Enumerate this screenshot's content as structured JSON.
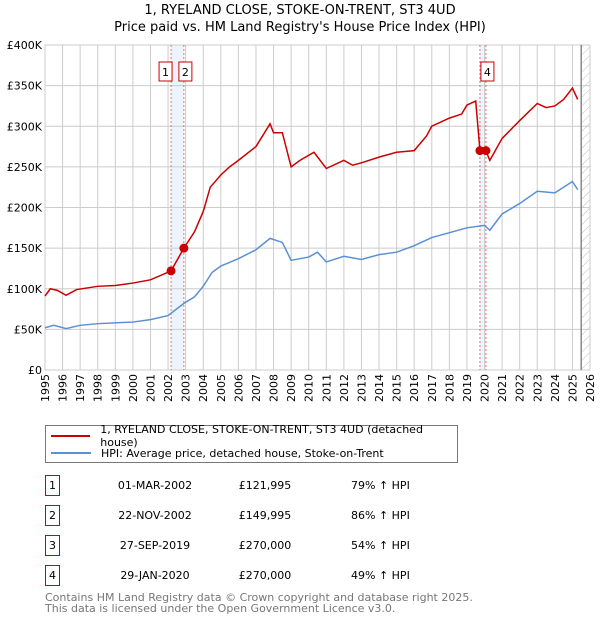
{
  "chart_data": {
    "type": "line",
    "title": "1, RYELAND CLOSE, STOKE-ON-TRENT, ST3 4UD",
    "subtitle": "Price paid vs. HM Land Registry's House Price Index (HPI)",
    "xlim": [
      1995,
      2026
    ],
    "ylim": [
      0,
      400000
    ],
    "yticks": [
      0,
      50000,
      100000,
      150000,
      200000,
      250000,
      300000,
      350000,
      400000
    ],
    "ytick_labels": [
      "£0",
      "£50K",
      "£100K",
      "£150K",
      "£200K",
      "£250K",
      "£300K",
      "£350K",
      "£400K"
    ],
    "xticks": [
      1995,
      1996,
      1997,
      1998,
      1999,
      2000,
      2001,
      2002,
      2003,
      2004,
      2005,
      2006,
      2007,
      2008,
      2009,
      2010,
      2011,
      2012,
      2013,
      2014,
      2015,
      2016,
      2017,
      2018,
      2019,
      2020,
      2021,
      2022,
      2023,
      2024,
      2025,
      2026
    ],
    "grid": true,
    "series": [
      {
        "name": "1, RYELAND CLOSE, STOKE-ON-TRENT, ST3 4UD (detached house)",
        "color": "#cc0000",
        "x": [
          1995,
          1995.3,
          1995.7,
          1996.2,
          1996.8,
          1998,
          1999,
          2000,
          2001,
          2002.17,
          2002.9,
          2003.5,
          2004,
          2004.4,
          2005,
          2005.5,
          2006,
          2007,
          2007.8,
          2008,
          2008.5,
          2009,
          2009.5,
          2010.3,
          2011,
          2012,
          2012.5,
          2013,
          2014,
          2015,
          2016,
          2016.7,
          2017,
          2018,
          2018.7,
          2019,
          2019.5,
          2019.74,
          2020.08,
          2020.3,
          2021,
          2022,
          2023,
          2023.5,
          2024,
          2024.5,
          2025,
          2025.3
        ],
        "y": [
          91000,
          100000,
          98000,
          92000,
          99000,
          103000,
          104000,
          107000,
          111000,
          121995,
          149995,
          170000,
          195000,
          225000,
          240000,
          250000,
          258000,
          275000,
          303000,
          292000,
          292000,
          250000,
          258000,
          268000,
          248000,
          258000,
          252000,
          255000,
          262000,
          268000,
          270000,
          288000,
          300000,
          310000,
          315000,
          326000,
          331000,
          270000,
          270000,
          258000,
          285000,
          307000,
          328000,
          323000,
          325000,
          333000,
          347000,
          333000
        ]
      },
      {
        "name": "HPI: Average price, detached house, Stoke-on-Trent",
        "color": "#5b8fd6",
        "x": [
          1995,
          1995.5,
          1996.2,
          1997,
          1998,
          2000,
          2001,
          2002,
          2002.9,
          2003.5,
          2004,
          2004.5,
          2005,
          2006,
          2007,
          2007.8,
          2008.5,
          2009,
          2010,
          2010.5,
          2011,
          2012,
          2013,
          2014,
          2015,
          2016,
          2017,
          2018,
          2019,
          2020,
          2020.3,
          2021,
          2022,
          2023,
          2024,
          2025,
          2025.3
        ],
        "y": [
          52000,
          55000,
          51000,
          55000,
          57000,
          59000,
          62000,
          67000,
          82000,
          90000,
          103000,
          120000,
          128000,
          137000,
          148000,
          162000,
          157000,
          135000,
          139000,
          145000,
          133000,
          140000,
          136000,
          142000,
          145000,
          153000,
          163000,
          169000,
          175000,
          178000,
          172000,
          192000,
          205000,
          220000,
          218000,
          232000,
          222000
        ]
      }
    ],
    "sales": [
      {
        "n": "1",
        "x": 2002.17,
        "y": 121995
      },
      {
        "n": "2",
        "x": 2002.9,
        "y": 149995
      },
      {
        "n": "3",
        "x": 2019.74,
        "y": 270000
      },
      {
        "n": "4",
        "x": 2020.08,
        "y": 270000
      }
    ],
    "bands": [
      [
        2002.17,
        2002.9
      ],
      [
        2019.74,
        2020.08
      ]
    ],
    "forecast_from": 2025.5
  },
  "legend": {
    "property": "1, RYELAND CLOSE, STOKE-ON-TRENT, ST3 4UD (detached house)",
    "hpi": "HPI: Average price, detached house, Stoke-on-Trent"
  },
  "table": [
    {
      "n": "1",
      "date": "01-MAR-2002",
      "price": "£121,995",
      "hpi": "79% ↑ HPI"
    },
    {
      "n": "2",
      "date": "22-NOV-2002",
      "price": "£149,995",
      "hpi": "86% ↑ HPI"
    },
    {
      "n": "3",
      "date": "27-SEP-2019",
      "price": "£270,000",
      "hpi": "54% ↑ HPI"
    },
    {
      "n": "4",
      "date": "29-JAN-2020",
      "price": "£270,000",
      "hpi": "49% ↑ HPI"
    }
  ],
  "footer": {
    "line1": "Contains HM Land Registry data © Crown copyright and database right 2025.",
    "line2": "This data is licensed under the Open Government Licence v3.0."
  }
}
